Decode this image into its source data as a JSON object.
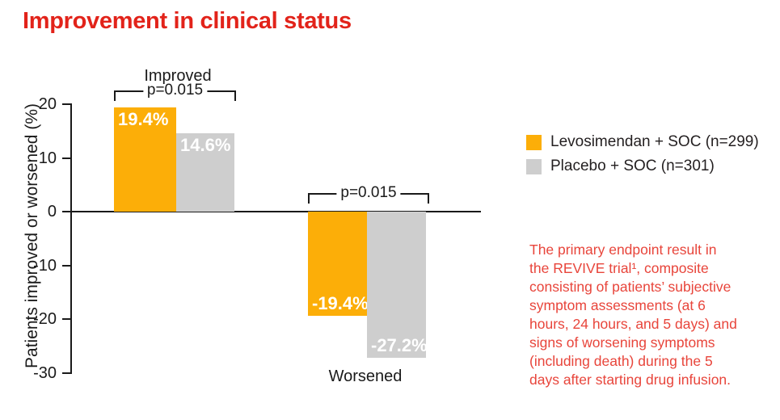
{
  "title": "Improvement in clinical status",
  "colors": {
    "title_red": "#E2231A",
    "annotation_red": "#E8453B",
    "levosimendan_orange": "#FCAE08",
    "placebo_gray": "#CECECE",
    "axis_black": "#1A1A1A",
    "bar_value_text": "#FFFFFF"
  },
  "annotation": "The primary endpoint result in the REVIVE trial¹, composite consisting of patients’ subjective symptom assessments (at 6 hours, 24 hours, and 5 days) and signs of worsening symptoms (including death) during the 5 days after starting drug infusion.",
  "chart_data": {
    "type": "bar",
    "categories": [
      "Improved",
      "Worsened"
    ],
    "series": [
      {
        "name": "Levosimendan + SOC (n=299)",
        "color": "#FCAE08",
        "values": [
          19.4,
          -19.4
        ]
      },
      {
        "name": "Placebo + SOC (n=301)",
        "color": "#CECECE",
        "values": [
          14.6,
          -27.2
        ]
      }
    ],
    "value_labels": [
      [
        "19.4%",
        "-19.4%"
      ],
      [
        "14.6%",
        "-27.2%"
      ]
    ],
    "p_values": [
      "p=0.015",
      "p=0.015"
    ],
    "title": "Improvement in clinical status",
    "xlabel": "",
    "ylabel": "Patients improved or worsened (%)",
    "yticks": [
      20,
      10,
      0,
      -10,
      -20,
      -30
    ],
    "ylim": [
      -30,
      20
    ],
    "grid": false,
    "legend_position": "right"
  }
}
